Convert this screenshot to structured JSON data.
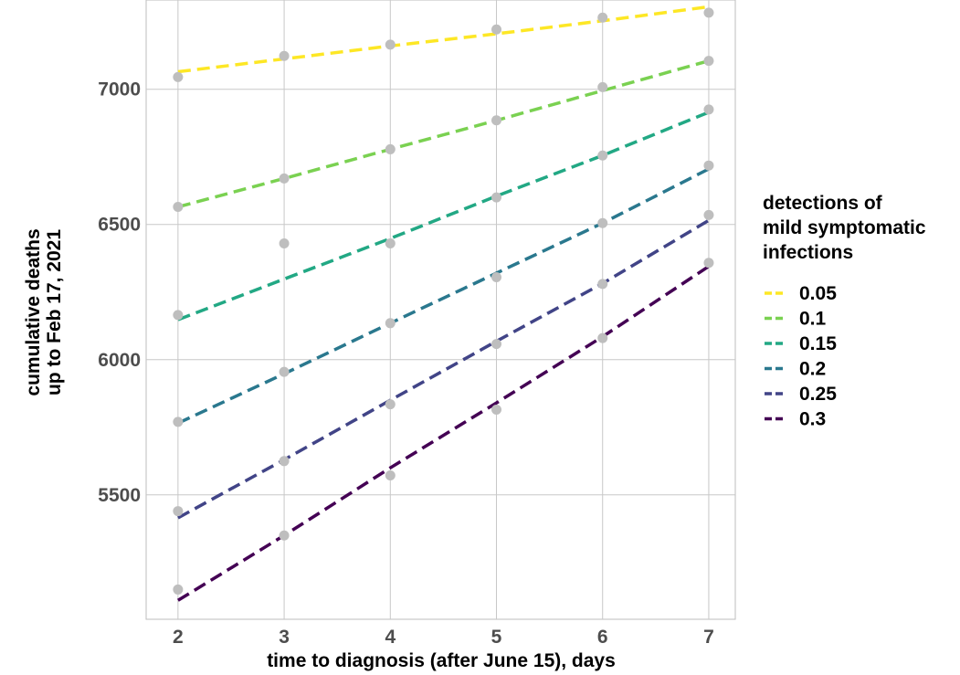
{
  "chart_data": {
    "type": "line",
    "xlabel": "time to diagnosis (after June 15), days",
    "ylabel_lines": [
      "cumulative deaths",
      "up to Feb 17, 2021"
    ],
    "x": [
      2,
      3,
      4,
      5,
      6,
      7
    ],
    "x_ticks": [
      "2",
      "3",
      "4",
      "5",
      "6",
      "7"
    ],
    "y_ticks": [
      "5500",
      "6000",
      "6500",
      "7000"
    ],
    "y_tick_values": [
      5500,
      6000,
      6500,
      7000
    ],
    "xlim": [
      1.7,
      7.25
    ],
    "ylim": [
      5040,
      7330
    ],
    "grid": true,
    "legend": {
      "title_lines": [
        "detections of",
        "mild symptomatic",
        "infections"
      ],
      "placement": "right"
    },
    "point_color": "#bebebe",
    "series": [
      {
        "name": "0.05",
        "color": "#fde725",
        "points": [
          7045,
          7123,
          7165,
          7221,
          7265,
          7283
        ],
        "line": [
          7065,
          7112,
          7160,
          7205,
          7253,
          7305
        ]
      },
      {
        "name": "0.1",
        "color": "#7ad151",
        "points": [
          6565,
          6670,
          6778,
          6885,
          7008,
          7105
        ],
        "line": [
          6565,
          6670,
          6778,
          6885,
          6995,
          7105
        ]
      },
      {
        "name": "0.15",
        "color": "#22a884",
        "points": [
          6165,
          6430,
          6430,
          6600,
          6755,
          6925
        ],
        "line": [
          6148,
          6298,
          6448,
          6605,
          6755,
          6915
        ]
      },
      {
        "name": "0.2",
        "color": "#2a788e",
        "points": [
          5770,
          5955,
          6135,
          6305,
          6505,
          6718
        ],
        "line": [
          5765,
          5948,
          6135,
          6320,
          6505,
          6705
        ]
      },
      {
        "name": "0.25",
        "color": "#414487",
        "points": [
          5440,
          5625,
          5835,
          6058,
          6280,
          6535
        ],
        "line": [
          5415,
          5630,
          5850,
          6068,
          6282,
          6515
        ]
      },
      {
        "name": "0.3",
        "color": "#440154",
        "points": [
          5150,
          5350,
          5572,
          5815,
          6080,
          6358
        ],
        "line": [
          5110,
          5350,
          5600,
          5840,
          6085,
          6345
        ]
      }
    ]
  }
}
